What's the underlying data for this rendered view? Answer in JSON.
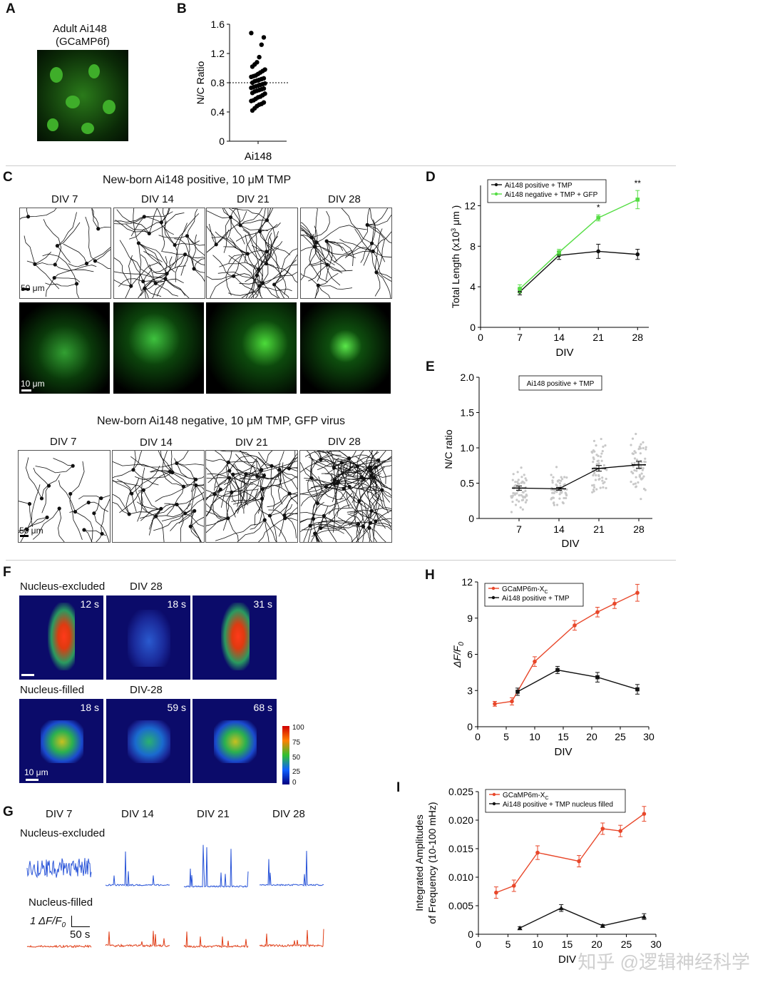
{
  "panels": {
    "A": "A",
    "B": "B",
    "C": "C",
    "D": "D",
    "E": "E",
    "F": "F",
    "G": "G",
    "H": "H",
    "I": "I"
  },
  "panelA": {
    "title_line1": "Adult Ai148",
    "title_line2": "(GCaMP6f)"
  },
  "panelC": {
    "heading_pos": "New-born Ai148 positive, 10 μM TMP",
    "heading_neg": "New-born Ai148 negative, 10 μM TMP, GFP virus",
    "div_labels": [
      "DIV 7",
      "DIV 14",
      "DIV 21",
      "DIV 28"
    ],
    "scale_skeleton": "50 μm",
    "scale_fluor": "10 μm"
  },
  "panelF": {
    "row1_label": "Nucleus-excluded",
    "row1_div": "DIV 28",
    "row1_times": [
      "12 s",
      "18 s",
      "31 s"
    ],
    "row2_label": "Nucleus-filled",
    "row2_div": "DIV-28",
    "row2_times": [
      "18 s",
      "59 s",
      "68 s"
    ],
    "scale": "10 μm",
    "colorbar_ticks": [
      "100",
      "75",
      "50",
      "25",
      "0"
    ]
  },
  "panelG": {
    "div_labels": [
      "DIV 7",
      "DIV 14",
      "DIV 21",
      "DIV 28"
    ],
    "row1_label": "Nucleus-excluded",
    "row2_label": "Nucleus-filled",
    "scale_y": "1 ΔF/F",
    "scale_y_sub": "0",
    "scale_x": "50 s"
  },
  "watermark": "知乎 @逻辑神经科学",
  "chart_data": [
    {
      "id": "B",
      "type": "scatter",
      "title": "",
      "xlabel": "Ai148",
      "ylabel": "N/C Ratio",
      "ylim": [
        0,
        1.6
      ],
      "yticks": [
        "0",
        "0.4",
        "0.8",
        "1.2",
        "1.6"
      ],
      "reference_line": 0.8,
      "values": [
        1.48,
        1.42,
        1.32,
        1.15,
        1.08,
        1.05,
        1.02,
        0.98,
        0.96,
        0.94,
        0.92,
        0.9,
        0.89,
        0.88,
        0.86,
        0.85,
        0.84,
        0.83,
        0.82,
        0.8,
        0.79,
        0.78,
        0.77,
        0.76,
        0.75,
        0.74,
        0.73,
        0.72,
        0.71,
        0.7,
        0.69,
        0.68,
        0.66,
        0.65,
        0.63,
        0.61,
        0.6,
        0.58,
        0.56,
        0.55,
        0.53,
        0.51,
        0.5,
        0.48,
        0.45,
        0.42
      ]
    },
    {
      "id": "D",
      "type": "line",
      "xlabel": "DIV",
      "ylabel": "Total Length (x10",
      "ylabel_sup": "3",
      "ylabel_unit": " μm )",
      "x": [
        7,
        14,
        21,
        28
      ],
      "xlim": [
        0,
        30
      ],
      "xticks": [
        "0",
        "7",
        "14",
        "21",
        "28"
      ],
      "ylim": [
        0,
        14
      ],
      "yticks": [
        "0",
        "4",
        "8",
        "12"
      ],
      "legend_position": "top-left",
      "series": [
        {
          "name": "Ai148 positive + TMP",
          "color": "#111111",
          "values": [
            3.5,
            7.1,
            7.5,
            7.2
          ],
          "err": [
            0.3,
            0.4,
            0.7,
            0.5
          ]
        },
        {
          "name": "Ai148 negative + TMP + GFP",
          "color": "#55dd44",
          "values": [
            3.8,
            7.4,
            10.8,
            12.6
          ],
          "err": [
            0.4,
            0.3,
            0.3,
            0.9
          ]
        }
      ],
      "annotations": [
        {
          "x": 21,
          "text": "*"
        },
        {
          "x": 28,
          "text": "**"
        }
      ]
    },
    {
      "id": "E",
      "type": "scatter",
      "xlabel": "DIV",
      "ylabel": "N/C ratio",
      "x": [
        7,
        14,
        21,
        28
      ],
      "ylim": [
        0,
        2.0
      ],
      "yticks": [
        "0",
        "0.5",
        "1.0",
        "1.5",
        "2.0"
      ],
      "legend_box": "Ai148 positive + TMP",
      "mean": [
        0.43,
        0.42,
        0.71,
        0.76
      ],
      "sem": [
        0.03,
        0.02,
        0.04,
        0.05
      ]
    },
    {
      "id": "H",
      "type": "line",
      "xlabel": "DIV",
      "ylabel": "ΔF/F",
      "ylabel_sub": "0",
      "xlim": [
        0,
        30
      ],
      "xticks": [
        "0",
        "5",
        "10",
        "15",
        "20",
        "25",
        "30"
      ],
      "ylim": [
        0,
        12
      ],
      "yticks": [
        "0",
        "3",
        "6",
        "9",
        "12"
      ],
      "legend_position": "top-left",
      "series": [
        {
          "name": "GCaMP6m-X",
          "name_sub": "C",
          "color": "#e8472a",
          "x": [
            3,
            6,
            10,
            17,
            21,
            24,
            28
          ],
          "values": [
            1.9,
            2.1,
            5.4,
            8.4,
            9.5,
            10.2,
            11.1
          ],
          "err": [
            0.2,
            0.3,
            0.4,
            0.4,
            0.4,
            0.4,
            0.7
          ]
        },
        {
          "name": "Ai148 positive + TMP",
          "color": "#111111",
          "x": [
            7,
            14,
            21,
            28
          ],
          "values": [
            2.9,
            4.7,
            4.1,
            3.1
          ],
          "err": [
            0.3,
            0.3,
            0.4,
            0.4
          ]
        }
      ]
    },
    {
      "id": "I",
      "type": "line",
      "xlabel": "DIV",
      "ylabel_line1": "Integrated Amplitudes",
      "ylabel_line2": "of Frequency (10-100 mHz)",
      "xlim": [
        0,
        30
      ],
      "xticks": [
        "0",
        "5",
        "10",
        "15",
        "20",
        "25",
        "30"
      ],
      "ylim": [
        0,
        0.025
      ],
      "yticks": [
        "0",
        "0.005",
        "0.010",
        "0.015",
        "0.020",
        "0.025"
      ],
      "legend_position": "top-left",
      "series": [
        {
          "name": "GCaMP6m-X",
          "name_sub": "C",
          "color": "#e8472a",
          "x": [
            3,
            6,
            10,
            17,
            21,
            24,
            28
          ],
          "values": [
            0.0073,
            0.0085,
            0.0143,
            0.0128,
            0.0185,
            0.0181,
            0.0211
          ],
          "err": [
            0.001,
            0.001,
            0.0012,
            0.001,
            0.001,
            0.001,
            0.0013
          ]
        },
        {
          "name": "Ai148 positive + TMP nucleus filled",
          "color": "#111111",
          "x": [
            7,
            14,
            21,
            28
          ],
          "values": [
            0.0011,
            0.0046,
            0.0015,
            0.0031
          ],
          "err": [
            0.0002,
            0.0006,
            0.0002,
            0.0005
          ]
        }
      ]
    }
  ]
}
